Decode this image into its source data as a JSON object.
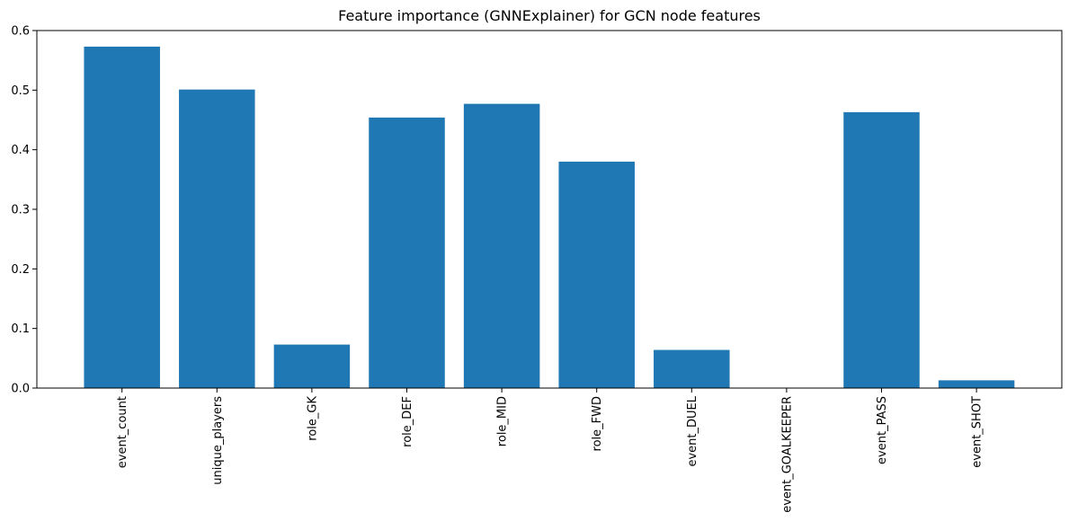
{
  "chart_data": {
    "type": "bar",
    "title": "Feature importance (GNNExplainer) for GCN node features",
    "xlabel": "",
    "ylabel": "",
    "categories": [
      "event_count",
      "unique_players",
      "role_GK",
      "role_DEF",
      "role_MID",
      "role_FWD",
      "event_DUEL",
      "event_GOALKEEPER",
      "event_PASS",
      "event_SHOT"
    ],
    "values": [
      0.573,
      0.501,
      0.073,
      0.454,
      0.477,
      0.38,
      0.064,
      0.0,
      0.463,
      0.013
    ],
    "ylim": [
      0,
      0.6
    ],
    "yticks": [
      "0.0",
      "0.1",
      "0.2",
      "0.3",
      "0.4",
      "0.5",
      "0.6"
    ],
    "bar_color": "#1f77b4",
    "grid": false,
    "legend": "none"
  }
}
